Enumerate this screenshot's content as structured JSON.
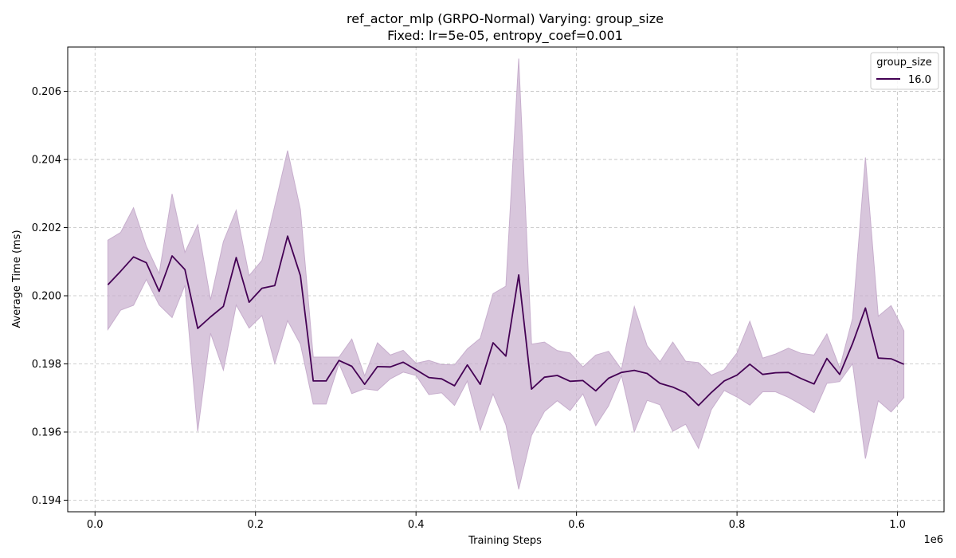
{
  "title_line1": "ref_actor_mlp (GRPO-Normal) Varying: group_size",
  "title_line2": "Fixed: lr=5e-05, entropy_coef=0.001",
  "chart_data": {
    "type": "line",
    "title": "ref_actor_mlp (GRPO-Normal) Varying: group_size\nFixed: lr=5e-05, entropy_coef=0.001",
    "xlabel": "Training Steps",
    "ylabel": "Average Time (ms)",
    "x_offset_label": "1e6",
    "xlim": [
      -0.034,
      1.058
    ],
    "ylim": [
      0.19366,
      0.2073
    ],
    "x_ticks": [
      0.0,
      0.2,
      0.4,
      0.6,
      0.8,
      1.0
    ],
    "x_tick_labels": [
      "0.0",
      "0.2",
      "0.4",
      "0.6",
      "0.8",
      "1.0"
    ],
    "y_ticks": [
      0.194,
      0.196,
      0.198,
      0.2,
      0.202,
      0.204,
      0.206
    ],
    "y_tick_labels": [
      "0.194",
      "0.196",
      "0.198",
      "0.200",
      "0.202",
      "0.204",
      "0.206"
    ],
    "grid": true,
    "legend": {
      "title": "group_size",
      "placement": "top-right"
    },
    "series": [
      {
        "name": "16.0",
        "color": "#440154",
        "band_color": "#c7aecd",
        "x": [
          0.016,
          0.032,
          0.048,
          0.064,
          0.08,
          0.096,
          0.112,
          0.128,
          0.144,
          0.16,
          0.176,
          0.192,
          0.208,
          0.224,
          0.24,
          0.256,
          0.272,
          0.288,
          0.304,
          0.32,
          0.336,
          0.352,
          0.368,
          0.384,
          0.4,
          0.416,
          0.432,
          0.448,
          0.464,
          0.48,
          0.496,
          0.512,
          0.528,
          0.544,
          0.56,
          0.576,
          0.592,
          0.608,
          0.624,
          0.64,
          0.656,
          0.672,
          0.688,
          0.704,
          0.72,
          0.736,
          0.752,
          0.768,
          0.784,
          0.8,
          0.816,
          0.832,
          0.848,
          0.864,
          0.88,
          0.896,
          0.912,
          0.928,
          0.944,
          0.96,
          0.976,
          0.992,
          1.008
        ],
        "y": [
          0.20032,
          0.20072,
          0.20114,
          0.20097,
          0.20013,
          0.20117,
          0.20077,
          0.19904,
          0.19938,
          0.19969,
          0.20112,
          0.19981,
          0.20022,
          0.2003,
          0.20175,
          0.20059,
          0.1975,
          0.1975,
          0.1981,
          0.19793,
          0.1974,
          0.19792,
          0.19791,
          0.19805,
          0.19783,
          0.1976,
          0.19756,
          0.19736,
          0.19797,
          0.1974,
          0.19862,
          0.19823,
          0.20061,
          0.19726,
          0.19761,
          0.19766,
          0.19749,
          0.19751,
          0.19721,
          0.19758,
          0.19775,
          0.19781,
          0.19772,
          0.19743,
          0.19732,
          0.19715,
          0.19678,
          0.19716,
          0.1975,
          0.19767,
          0.19799,
          0.19769,
          0.19774,
          0.19775,
          0.19757,
          0.19741,
          0.19816,
          0.19769,
          0.1986,
          0.19964,
          0.19817,
          0.19815,
          0.19799
        ],
        "lower": [
          0.19901,
          0.19958,
          0.19972,
          0.20048,
          0.19973,
          0.19936,
          0.20031,
          0.19602,
          0.1989,
          0.19782,
          0.19973,
          0.19905,
          0.19942,
          0.19801,
          0.19927,
          0.19858,
          0.19682,
          0.19682,
          0.19801,
          0.19713,
          0.19727,
          0.19722,
          0.19756,
          0.19776,
          0.19766,
          0.1971,
          0.19715,
          0.19678,
          0.1975,
          0.19605,
          0.19712,
          0.19621,
          0.19432,
          0.1959,
          0.1966,
          0.19692,
          0.19663,
          0.19712,
          0.19619,
          0.19677,
          0.19766,
          0.19601,
          0.19693,
          0.1968,
          0.19602,
          0.19623,
          0.19552,
          0.19666,
          0.19722,
          0.19703,
          0.19679,
          0.19718,
          0.19718,
          0.19702,
          0.19681,
          0.19657,
          0.19743,
          0.19748,
          0.19801,
          0.19522,
          0.19692,
          0.19659,
          0.19701
        ],
        "upper": [
          0.20163,
          0.20186,
          0.20258,
          0.20145,
          0.20065,
          0.20299,
          0.20127,
          0.20208,
          0.19988,
          0.20159,
          0.20251,
          0.20059,
          0.20104,
          0.20264,
          0.20426,
          0.20253,
          0.1982,
          0.1982,
          0.1982,
          0.19873,
          0.19765,
          0.19862,
          0.19826,
          0.1984,
          0.19802,
          0.1981,
          0.19798,
          0.19797,
          0.19844,
          0.19875,
          0.20006,
          0.20028,
          0.20696,
          0.19858,
          0.19864,
          0.19839,
          0.19832,
          0.19791,
          0.19826,
          0.19837,
          0.19784,
          0.19968,
          0.19853,
          0.19806,
          0.19864,
          0.19808,
          0.19804,
          0.19767,
          0.19783,
          0.19832,
          0.19925,
          0.19817,
          0.19829,
          0.19846,
          0.19831,
          0.19826,
          0.19888,
          0.19788,
          0.19934,
          0.20406,
          0.1994,
          0.19971,
          0.19897
        ]
      }
    ]
  }
}
